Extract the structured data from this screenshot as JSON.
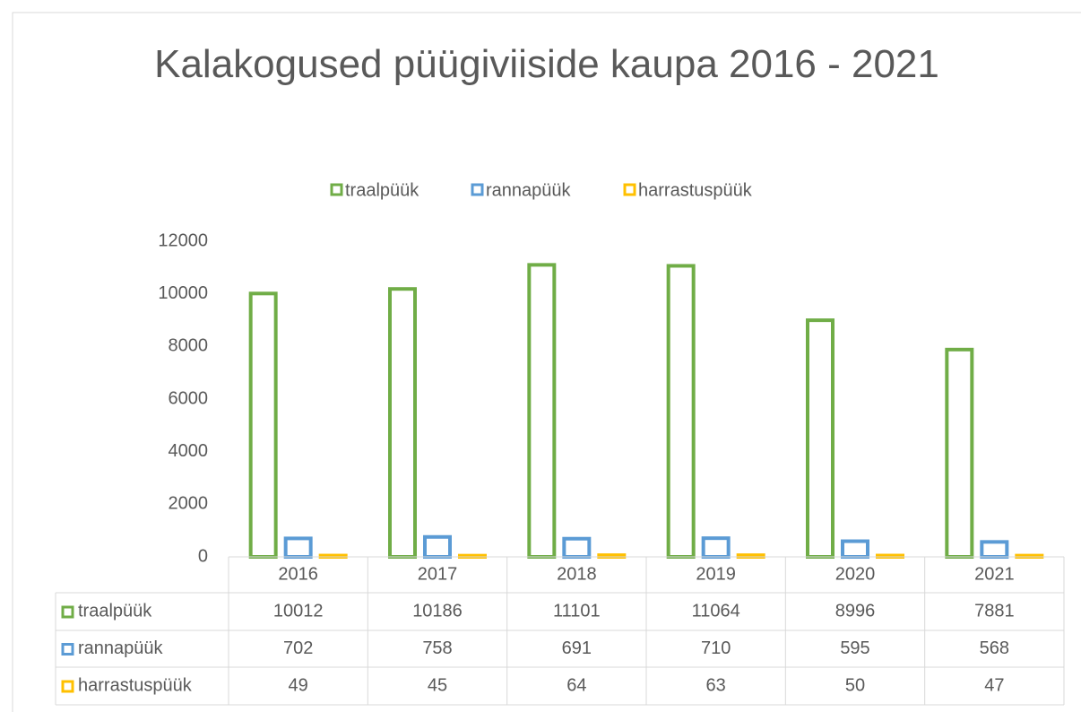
{
  "chart_data": {
    "type": "bar",
    "title": "Kalakogused püügiviiside kaupa 2016 - 2021",
    "categories": [
      "2016",
      "2017",
      "2018",
      "2019",
      "2020",
      "2021"
    ],
    "series": [
      {
        "name": "traalpüük",
        "color": "#70ad47",
        "values": [
          10012,
          10186,
          11101,
          11064,
          8996,
          7881
        ]
      },
      {
        "name": "rannapüük",
        "color": "#5b9bd5",
        "values": [
          702,
          758,
          691,
          710,
          595,
          568
        ]
      },
      {
        "name": "harrastuspüük",
        "color": "#ffc000",
        "values": [
          49,
          45,
          64,
          63,
          50,
          47
        ]
      }
    ],
    "ylim": [
      0,
      12000
    ],
    "yticks": [
      0,
      2000,
      4000,
      6000,
      8000,
      10000,
      12000
    ],
    "grid": false,
    "legend": "top",
    "data_table": true
  }
}
